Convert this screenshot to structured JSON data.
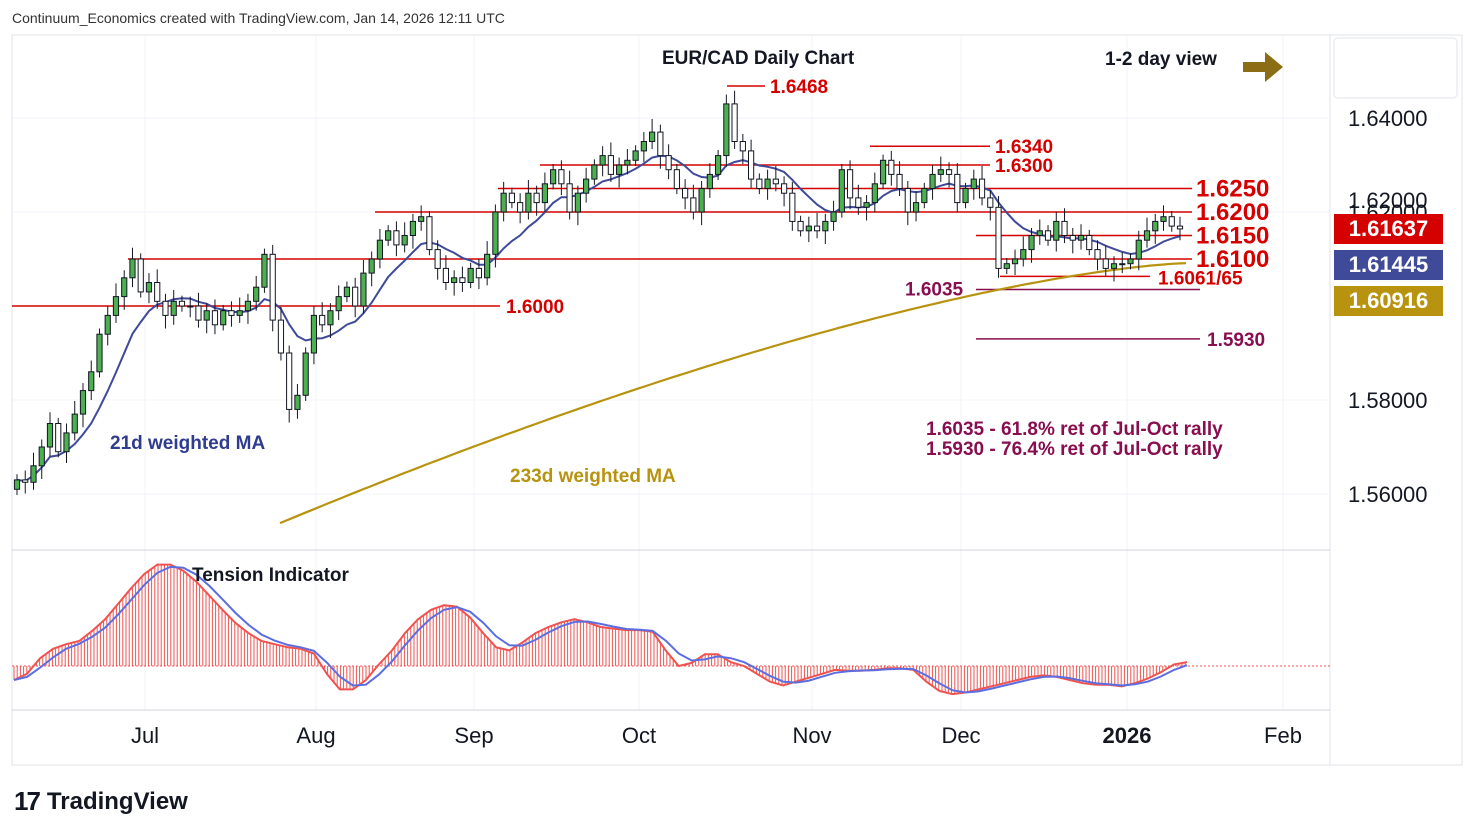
{
  "header": {
    "credit": "Continuum_Economics created with TradingView.com, Jan 14, 2026 12:11 UTC"
  },
  "chart_data": {
    "type": "candlestick",
    "title": "EUR/CAD Daily Chart",
    "view_label": "1-2 day view",
    "currency": "CAD",
    "y_ticks": [
      "1.64000",
      "1.62000",
      "1.58000",
      "1.56000"
    ],
    "x_ticks": [
      "Jul",
      "Aug",
      "Sep",
      "Oct",
      "Nov",
      "Dec",
      "2026",
      "Feb"
    ],
    "price_tags": [
      {
        "label": "1.61637",
        "color": "#d50000"
      },
      {
        "label": "1.61445",
        "color": "#3f4a99"
      },
      {
        "label": "1.60916",
        "color": "#b8930f"
      }
    ],
    "levels": [
      {
        "label": "1.6468",
        "value": 1.6468
      },
      {
        "label": "1.6340",
        "value": 1.634
      },
      {
        "label": "1.6300",
        "value": 1.63
      },
      {
        "label": "1.6250",
        "value": 1.625
      },
      {
        "label": "1.6200",
        "value": 1.62
      },
      {
        "label": "1.6150",
        "value": 1.615
      },
      {
        "label": "1.6100",
        "value": 1.61
      },
      {
        "label": "1.6061/65",
        "value": 1.6063
      },
      {
        "label": "1.6035",
        "value": 1.6035
      },
      {
        "label": "1.6000",
        "value": 1.6
      },
      {
        "label": "1.5930",
        "value": 1.593
      }
    ],
    "annotations": {
      "ma21": "21d weighted MA",
      "ma233": "233d weighted MA",
      "ret1": "1.6035 - 61.8% ret of Jul-Oct rally",
      "ret2": "1.5930 - 76.4% ret of Jul-Oct rally",
      "indicator": "Tension Indicator"
    },
    "closes": [
      1.563,
      1.5625,
      1.566,
      1.57,
      1.575,
      1.569,
      1.573,
      1.577,
      1.582,
      1.586,
      1.594,
      1.598,
      1.602,
      1.606,
      1.61,
      1.603,
      1.605,
      1.601,
      1.598,
      1.601,
      1.6,
      1.6,
      1.597,
      1.599,
      1.596,
      1.599,
      1.598,
      1.599,
      1.601,
      1.604,
      1.611,
      1.597,
      1.59,
      1.578,
      1.581,
      1.59,
      1.598,
      1.596,
      1.599,
      1.602,
      1.604,
      1.6,
      1.607,
      1.61,
      1.614,
      1.616,
      1.613,
      1.615,
      1.618,
      1.619,
      1.612,
      1.608,
      1.605,
      1.606,
      1.605,
      1.608,
      1.606,
      1.611,
      1.62,
      1.624,
      1.622,
      1.62,
      1.624,
      1.622,
      1.626,
      1.629,
      1.626,
      1.62,
      1.624,
      1.627,
      1.63,
      1.632,
      1.628,
      1.63,
      1.631,
      1.633,
      1.635,
      1.637,
      1.632,
      1.629,
      1.625,
      1.623,
      1.62,
      1.625,
      1.628,
      1.632,
      1.643,
      1.635,
      1.633,
      1.627,
      1.625,
      1.627,
      1.626,
      1.624,
      1.618,
      1.616,
      1.617,
      1.616,
      1.618,
      1.62,
      1.629,
      1.623,
      1.621,
      1.622,
      1.626,
      1.631,
      1.628,
      1.625,
      1.62,
      1.622,
      1.625,
      1.628,
      1.629,
      1.628,
      1.622,
      1.625,
      1.627,
      1.623,
      1.621,
      1.608,
      1.609,
      1.61,
      1.612,
      1.615,
      1.616,
      1.614,
      1.618,
      1.615,
      1.614,
      1.615,
      1.612,
      1.61,
      1.608,
      1.609,
      1.609,
      1.61,
      1.614,
      1.616,
      1.618,
      1.619,
      1.617,
      1.6164
    ],
    "tension": [
      -0.18,
      -0.1,
      0.1,
      0.22,
      0.28,
      0.32,
      0.45,
      0.6,
      0.8,
      1.0,
      1.18,
      1.3,
      1.3,
      1.22,
      1.08,
      0.9,
      0.72,
      0.55,
      0.42,
      0.32,
      0.28,
      0.24,
      0.22,
      0.16,
      -0.1,
      -0.3,
      -0.3,
      -0.18,
      0.02,
      0.2,
      0.42,
      0.6,
      0.72,
      0.78,
      0.76,
      0.62,
      0.42,
      0.24,
      0.2,
      0.3,
      0.42,
      0.5,
      0.56,
      0.6,
      0.56,
      0.5,
      0.48,
      0.46,
      0.46,
      0.44,
      0.2,
      0.0,
      0.04,
      0.15,
      0.15,
      0.05,
      0.0,
      -0.1,
      -0.2,
      -0.25,
      -0.2,
      -0.15,
      -0.1,
      -0.05,
      -0.06,
      -0.06,
      -0.05,
      -0.03,
      -0.03,
      -0.05,
      -0.2,
      -0.32,
      -0.36,
      -0.34,
      -0.3,
      -0.26,
      -0.22,
      -0.18,
      -0.14,
      -0.12,
      -0.14,
      -0.18,
      -0.22,
      -0.24,
      -0.24,
      -0.26,
      -0.22,
      -0.16,
      -0.08,
      0.02,
      0.05
    ]
  }
}
